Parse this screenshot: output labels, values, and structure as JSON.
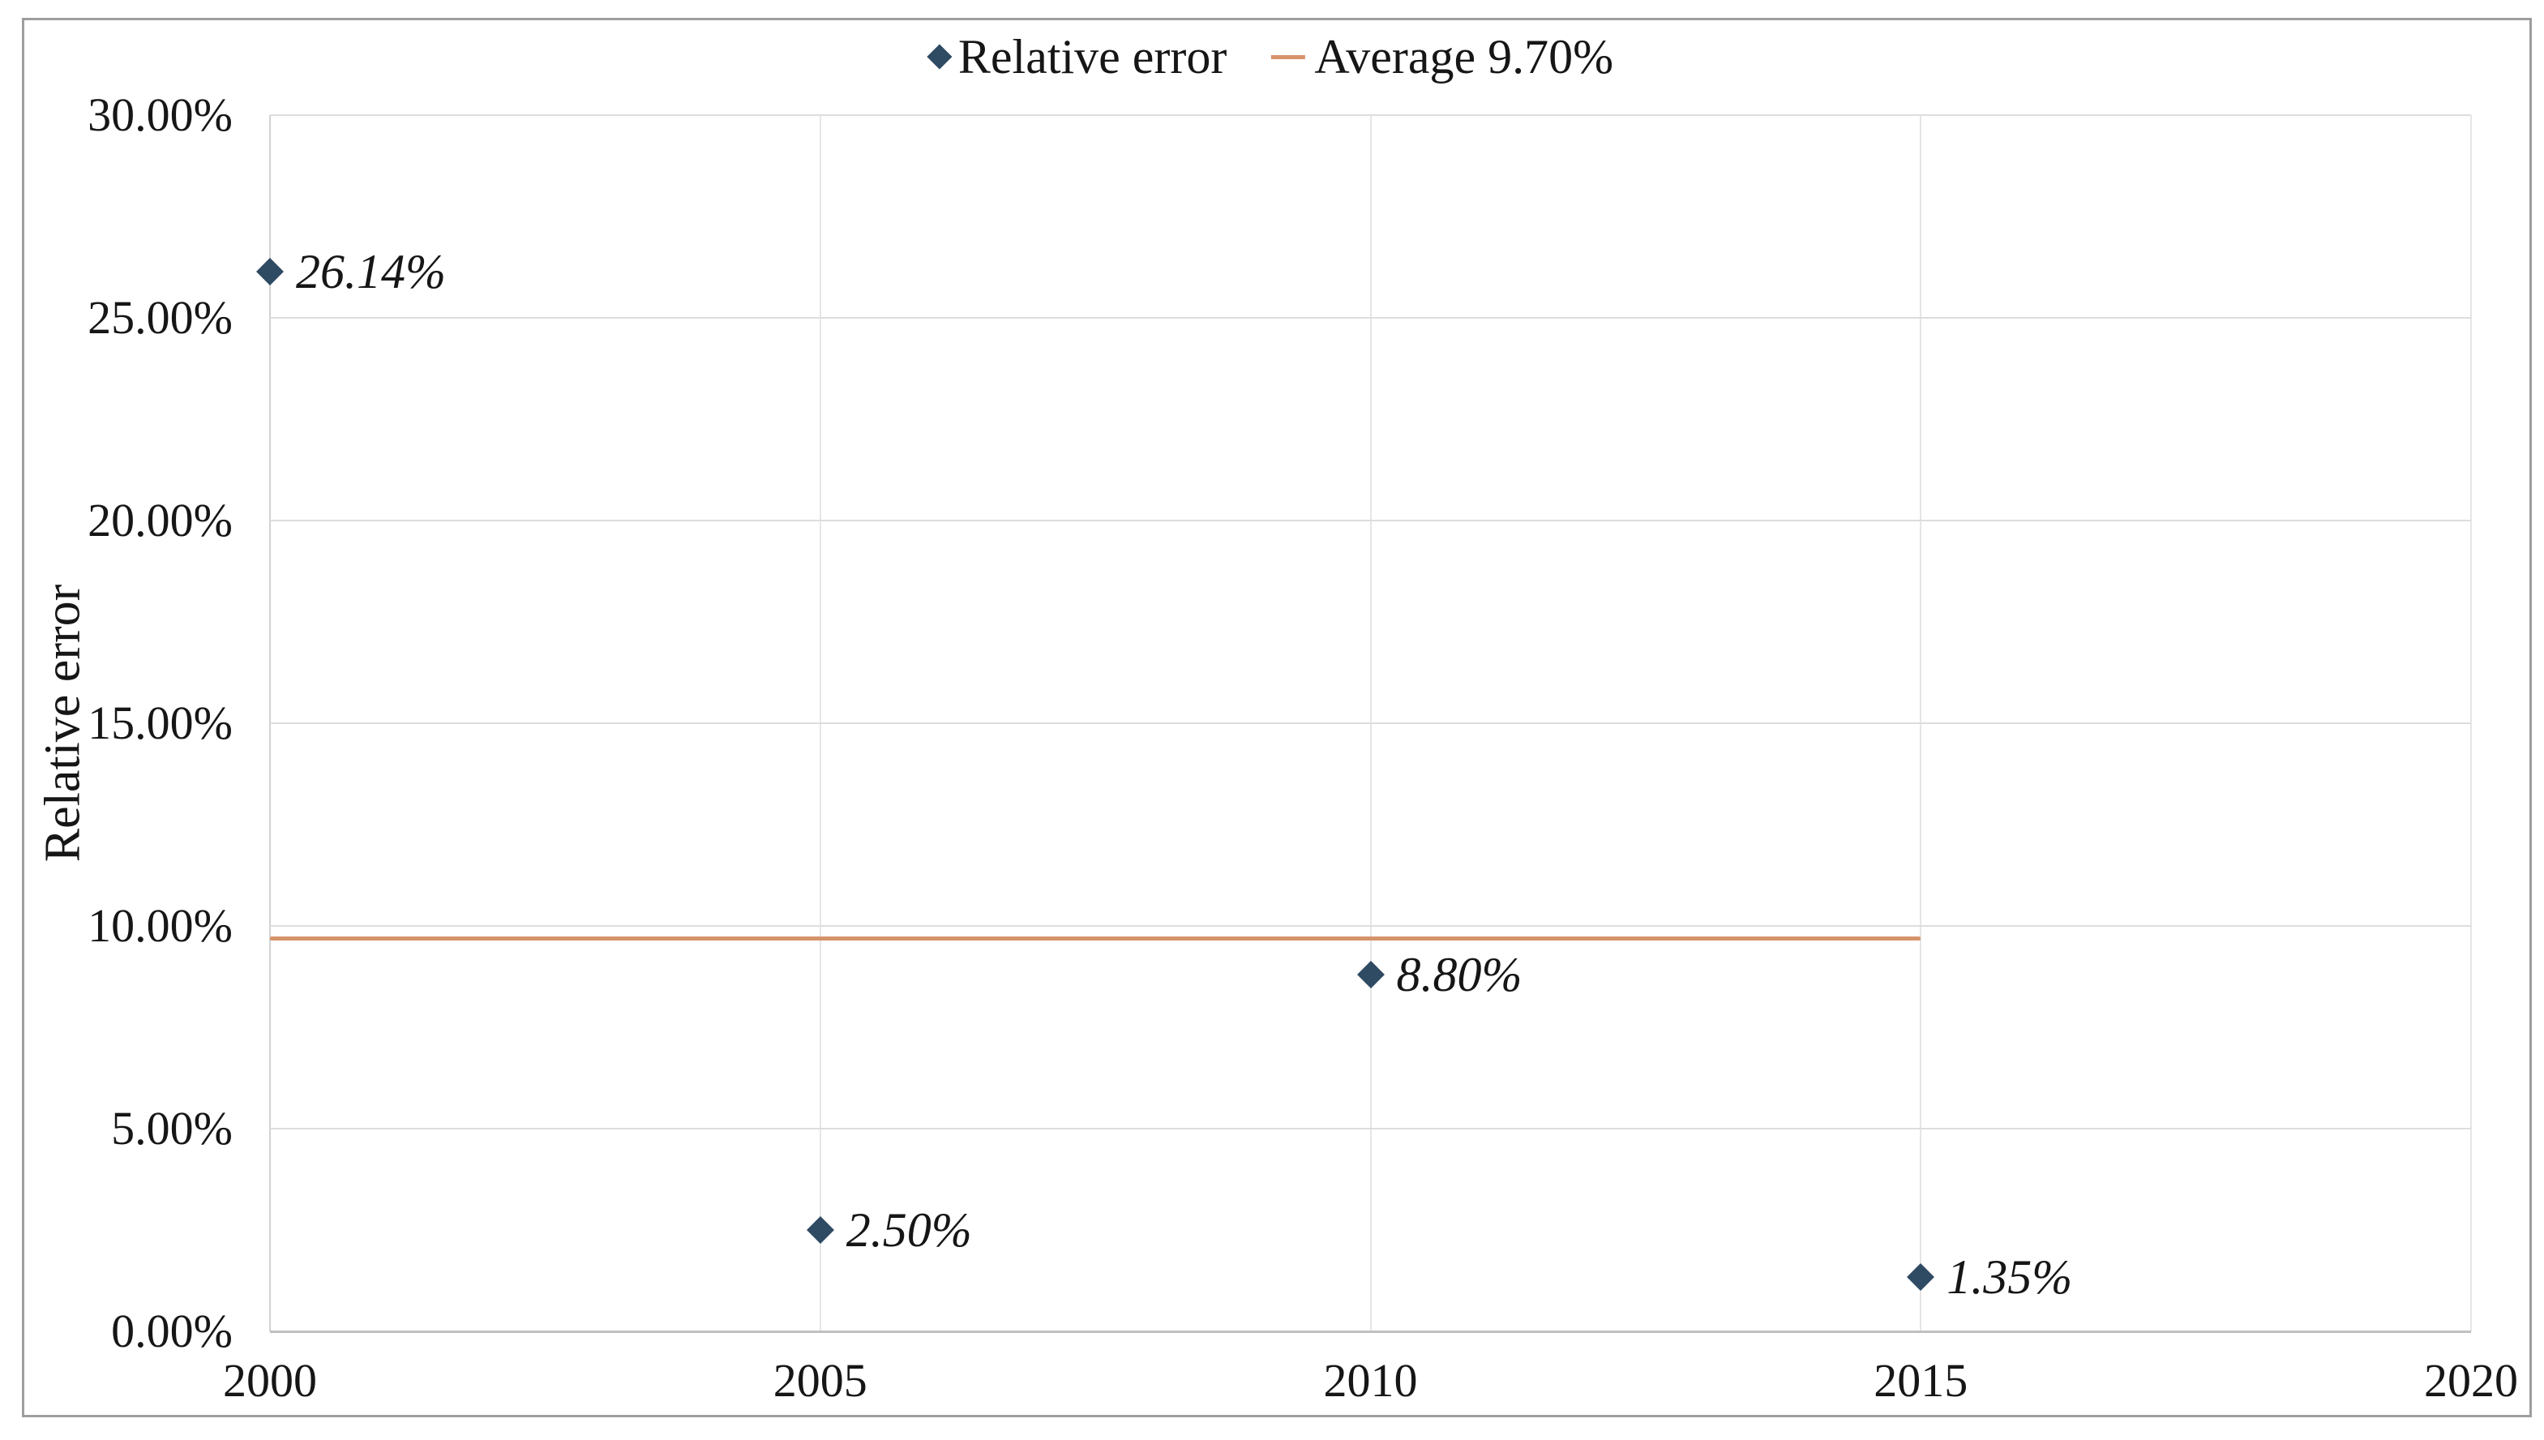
{
  "figure": {
    "background": "#ffffff",
    "border_color": "#9e9e9e"
  },
  "legend": {
    "position": "top-center",
    "items": [
      {
        "label": "Relative error",
        "marker": "diamond",
        "color": "#2f4a63"
      },
      {
        "label": "Average 9.70%",
        "marker": "line",
        "color": "#d6936a"
      }
    ]
  },
  "chart_data": {
    "type": "scatter",
    "title": "",
    "xlabel": "",
    "ylabel": "Relative error",
    "xlim": [
      2000,
      2020
    ],
    "ylim": [
      0,
      30
    ],
    "grid": true,
    "x_ticks": [
      {
        "value": 2000,
        "label": "2000"
      },
      {
        "value": 2005,
        "label": "2005"
      },
      {
        "value": 2010,
        "label": "2010"
      },
      {
        "value": 2015,
        "label": "2015"
      },
      {
        "value": 2020,
        "label": "2020"
      }
    ],
    "y_ticks": [
      {
        "value": 0,
        "label": "0.00%"
      },
      {
        "value": 5,
        "label": "5.00%"
      },
      {
        "value": 10,
        "label": "10.00%"
      },
      {
        "value": 15,
        "label": "15.00%"
      },
      {
        "value": 20,
        "label": "20.00%"
      },
      {
        "value": 25,
        "label": "25.00%"
      },
      {
        "value": 30,
        "label": "30.00%"
      }
    ],
    "series": [
      {
        "name": "Relative error",
        "type": "scatter",
        "marker": "diamond",
        "color": "#2f4a63",
        "points": [
          {
            "x": 2000,
            "y": 26.14,
            "label": "26.14%"
          },
          {
            "x": 2005,
            "y": 2.5,
            "label": "2.50%"
          },
          {
            "x": 2010,
            "y": 8.8,
            "label": "8.80%"
          },
          {
            "x": 2015,
            "y": 1.35,
            "label": "1.35%"
          }
        ]
      },
      {
        "name": "Average 9.70%",
        "type": "line",
        "color": "#d6936a",
        "value": 9.7,
        "x_start": 2000,
        "x_end": 2015
      }
    ]
  }
}
